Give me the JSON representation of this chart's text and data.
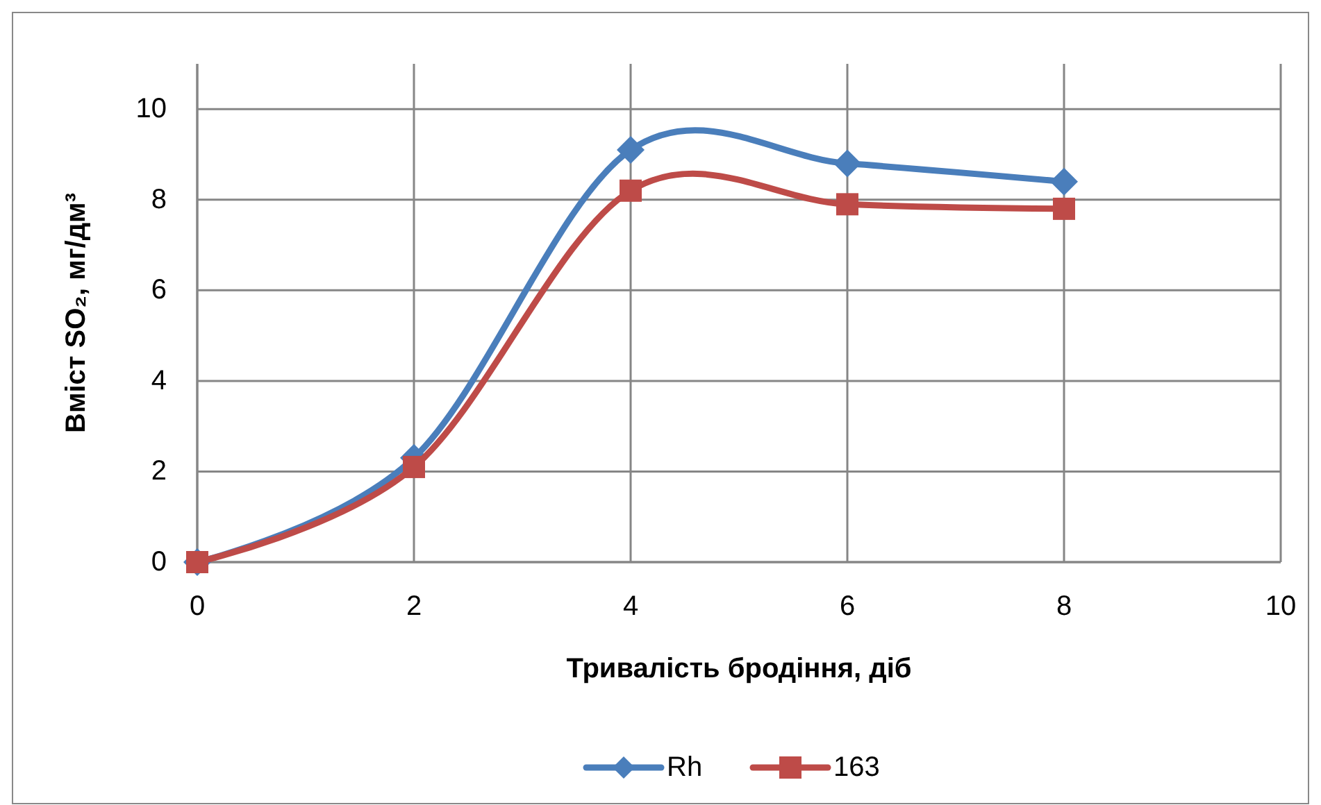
{
  "chart_data": {
    "type": "line",
    "xlabel": "Тривалість бродіння, діб",
    "ylabel": "Вміст SO₂, мг/дм³",
    "x": [
      0,
      2,
      4,
      6,
      8
    ],
    "series": [
      {
        "name": "Rh",
        "color": "#4a7ebb",
        "marker": "diamond",
        "values": [
          0,
          2.3,
          9.1,
          8.8,
          8.4
        ]
      },
      {
        "name": "163",
        "color": "#be4b48",
        "marker": "square",
        "values": [
          0,
          2.1,
          8.2,
          7.9,
          7.8
        ]
      }
    ],
    "xlim": [
      0,
      10
    ],
    "xticks": [
      0,
      2,
      4,
      6,
      8,
      10
    ],
    "ylim": [
      0,
      11
    ],
    "yticks": [
      0,
      2,
      4,
      6,
      8,
      10
    ],
    "grid": true,
    "legend": "bottom"
  }
}
